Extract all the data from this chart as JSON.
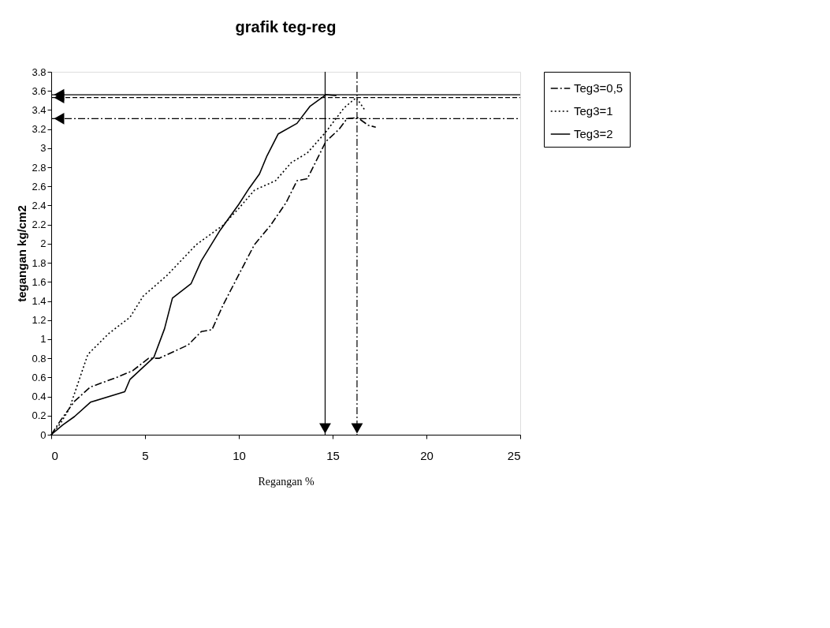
{
  "chart_data": {
    "type": "line",
    "title": "grafik teg-reg",
    "xlabel": "Regangan %",
    "ylabel": "tegangan kg/cm2",
    "xlim": [
      0,
      25
    ],
    "xticks": [
      0,
      5,
      10,
      15,
      20,
      25
    ],
    "ylim": [
      0,
      3.8
    ],
    "yticks": [
      0,
      0.2,
      0.4,
      0.6,
      0.8,
      1,
      1.2,
      1.4,
      1.6,
      1.8,
      2,
      2.2,
      2.4,
      2.6,
      2.8,
      3,
      3.2,
      3.4,
      3.6,
      3.8
    ],
    "grid": false,
    "legend": "right",
    "marker": "none",
    "series": [
      {
        "name": "Teg3=0,5",
        "color": "#000000",
        "line_style": "dashdot",
        "x": [
          0,
          0.5,
          1.24,
          2.09,
          3.36,
          4.34,
          5.19,
          5.75,
          7.3,
          8.0,
          8.57,
          9.14,
          9.85,
          10.83,
          11.68,
          12.52,
          13.1,
          13.65,
          14.64,
          15.35,
          15.77,
          16.33,
          16.9,
          17.3
        ],
        "values": [
          0,
          0.15,
          0.35,
          0.5,
          0.59,
          0.67,
          0.8,
          0.8,
          0.94,
          1.08,
          1.1,
          1.35,
          1.62,
          1.99,
          2.19,
          2.43,
          2.66,
          2.68,
          3.07,
          3.2,
          3.31,
          3.32,
          3.24,
          3.22
        ]
      },
      {
        "name": "Teg3=1",
        "color": "#000000",
        "line_style": "dotted",
        "x": [
          0,
          0.5,
          0.96,
          1.95,
          3.07,
          4.2,
          4.9,
          6.18,
          7.73,
          9.14,
          10.0,
          10.83,
          11.96,
          12.8,
          13.65,
          14.64,
          15.6,
          16.26,
          16.75
        ],
        "values": [
          0,
          0.12,
          0.27,
          0.84,
          1.06,
          1.23,
          1.45,
          1.67,
          1.99,
          2.19,
          2.37,
          2.56,
          2.66,
          2.85,
          2.95,
          3.17,
          3.42,
          3.53,
          3.39
        ]
      },
      {
        "name": "Teg3=2",
        "color": "#000000",
        "line_style": "solid",
        "x": [
          0,
          0.6,
          1.24,
          2.09,
          3.92,
          4.2,
          5.47,
          6.04,
          6.46,
          7.45,
          8.0,
          9.0,
          9.99,
          10.55,
          11.1,
          11.5,
          12.1,
          13.1,
          13.8,
          14.64,
          15.2
        ],
        "values": [
          0,
          0.1,
          0.19,
          0.34,
          0.45,
          0.58,
          0.81,
          1.11,
          1.43,
          1.58,
          1.82,
          2.14,
          2.41,
          2.58,
          2.73,
          2.92,
          3.15,
          3.26,
          3.44,
          3.56,
          3.55
        ]
      }
    ],
    "ref_lines": [
      {
        "axis": "y",
        "value": 3.56,
        "color": "#000000",
        "line_style": "solid"
      },
      {
        "axis": "y",
        "value": 3.53,
        "color": "#000000",
        "line_style": "dashed"
      },
      {
        "axis": "y",
        "value": 3.31,
        "color": "#000000",
        "line_style": "dashdot"
      },
      {
        "axis": "x",
        "value": 14.6,
        "color": "#000000",
        "line_style": "solid"
      },
      {
        "axis": "x",
        "value": 16.3,
        "color": "#000000",
        "line_style": "dashdot"
      }
    ]
  }
}
